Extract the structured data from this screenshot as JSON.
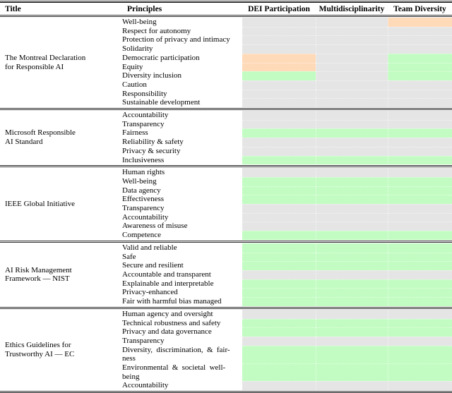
{
  "header": {
    "columns": [
      "Title",
      "Principles",
      "DEI Participation",
      "Multidisciplinarity",
      "Team Diversity"
    ]
  },
  "colors": {
    "gray": "#e5e5e5",
    "green": "#c2fcc2",
    "orange": "#ffdab9"
  },
  "sections": [
    {
      "title": "The Montreal Declaration\nfor Responsible AI",
      "rows": [
        {
          "principle": "Well-being",
          "cells": [
            "gray",
            "gray",
            "orange"
          ]
        },
        {
          "principle": "Respect for autonomy",
          "cells": [
            "gray",
            "gray",
            "gray"
          ]
        },
        {
          "principle": "Protection of privacy and intimacy",
          "cells": [
            "gray",
            "gray",
            "gray"
          ]
        },
        {
          "principle": "Solidarity",
          "cells": [
            "gray",
            "gray",
            "gray"
          ]
        },
        {
          "principle": "Democratic participation",
          "cells": [
            "orange",
            "gray",
            "green"
          ]
        },
        {
          "principle": "Equity",
          "cells": [
            "orange",
            "gray",
            "green"
          ]
        },
        {
          "principle": "Diversity inclusion",
          "cells": [
            "green",
            "gray",
            "green"
          ]
        },
        {
          "principle": "Caution",
          "cells": [
            "gray",
            "gray",
            "gray"
          ]
        },
        {
          "principle": "Responsibility",
          "cells": [
            "gray",
            "gray",
            "gray"
          ]
        },
        {
          "principle": "Sustainable development",
          "cells": [
            "gray",
            "gray",
            "gray"
          ]
        }
      ]
    },
    {
      "title": "Microsoft Responsible\nAI Standard",
      "rows": [
        {
          "principle": "Accountability",
          "cells": [
            "gray",
            "gray",
            "gray"
          ]
        },
        {
          "principle": "Transparency",
          "cells": [
            "gray",
            "gray",
            "gray"
          ]
        },
        {
          "principle": "Fairness",
          "cells": [
            "green",
            "green",
            "green"
          ]
        },
        {
          "principle": "Reliability & safety",
          "cells": [
            "gray",
            "gray",
            "gray"
          ]
        },
        {
          "principle": "Privacy & security",
          "cells": [
            "gray",
            "gray",
            "gray"
          ]
        },
        {
          "principle": "Inclusiveness",
          "cells": [
            "green",
            "green",
            "green"
          ]
        }
      ]
    },
    {
      "title": "IEEE Global Initiative",
      "rows": [
        {
          "principle": "Human rights",
          "cells": [
            "gray",
            "gray",
            "gray"
          ]
        },
        {
          "principle": "Well-being",
          "cells": [
            "green",
            "green",
            "green"
          ]
        },
        {
          "principle": "Data agency",
          "cells": [
            "green",
            "green",
            "green"
          ]
        },
        {
          "principle": "Effectiveness",
          "cells": [
            "green",
            "green",
            "green"
          ]
        },
        {
          "principle": "Transparency",
          "cells": [
            "gray",
            "gray",
            "gray"
          ]
        },
        {
          "principle": "Accountability",
          "cells": [
            "gray",
            "gray",
            "gray"
          ]
        },
        {
          "principle": "Awareness of misuse",
          "cells": [
            "gray",
            "gray",
            "gray"
          ]
        },
        {
          "principle": "Competence",
          "cells": [
            "green",
            "green",
            "green"
          ]
        }
      ]
    },
    {
      "title": "AI Risk Management\nFramework — NIST",
      "rows": [
        {
          "principle": "Valid and reliable",
          "cells": [
            "green",
            "green",
            "green"
          ]
        },
        {
          "principle": "Safe",
          "cells": [
            "green",
            "green",
            "green"
          ]
        },
        {
          "principle": "Secure and resilient",
          "cells": [
            "green",
            "green",
            "green"
          ]
        },
        {
          "principle": "Accountable and transparent",
          "cells": [
            "gray",
            "gray",
            "gray"
          ]
        },
        {
          "principle": "Explainable and interpretable",
          "cells": [
            "green",
            "green",
            "green"
          ]
        },
        {
          "principle": "Privacy-enhanced",
          "cells": [
            "green",
            "green",
            "green"
          ]
        },
        {
          "principle": "Fair with harmful bias managed",
          "cells": [
            "green",
            "green",
            "green"
          ]
        }
      ]
    },
    {
      "title": "Ethics Guidelines for\nTrustworthy AI — EC",
      "rows": [
        {
          "principle": "Human agency and oversight",
          "cells": [
            "gray",
            "gray",
            "gray"
          ]
        },
        {
          "principle": "Technical robustness and safety",
          "cells": [
            "green",
            "green",
            "green"
          ]
        },
        {
          "principle": "Privacy and data governance",
          "cells": [
            "green",
            "green",
            "green"
          ]
        },
        {
          "principle": "Transparency",
          "cells": [
            "gray",
            "gray",
            "gray"
          ]
        },
        {
          "principle": "Diversity, discrimination, & fair-\nness",
          "cells": [
            "green",
            "green",
            "green"
          ]
        },
        {
          "principle": "Environmental & societal well-\nbeing",
          "cells": [
            "green",
            "green",
            "green"
          ]
        },
        {
          "principle": "Accountability",
          "cells": [
            "gray",
            "gray",
            "gray"
          ]
        }
      ]
    }
  ]
}
